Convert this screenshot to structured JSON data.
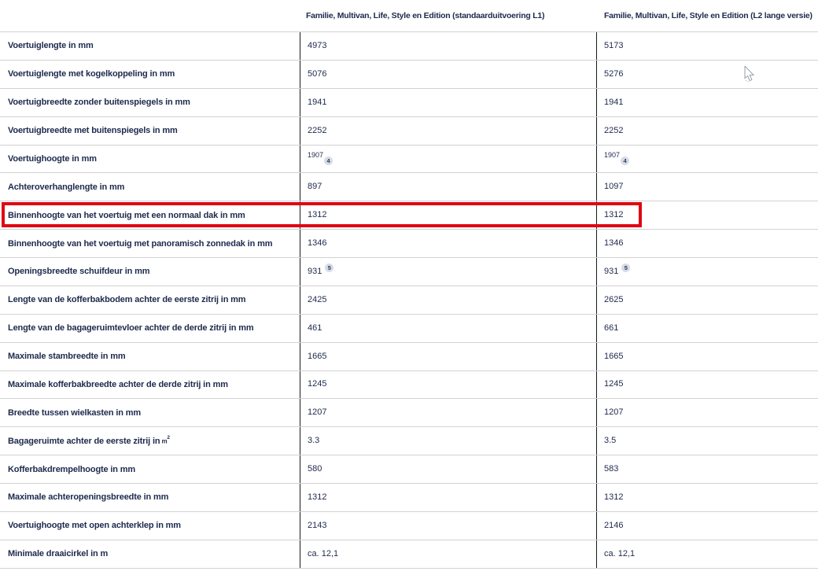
{
  "table": {
    "columns": [
      {
        "label": "Familie, Multivan, Life, Style en Edition (standaarduitvoering L1)"
      },
      {
        "label": "Familie, Multivan, Life, Style en Edition (L2 lange versie)"
      }
    ],
    "rows": [
      {
        "label": "Voertuiglengte in mm",
        "l1": "4973",
        "l2": "5173"
      },
      {
        "label": "Voertuiglengte met kogelkoppeling in mm",
        "l1": "5076",
        "l2": "5276"
      },
      {
        "label": "Voertuigbreedte zonder buitenspiegels in mm",
        "l1": "1941",
        "l2": "1941"
      },
      {
        "label": "Voertuigbreedte met buitenspiegels in mm",
        "l1": "2252",
        "l2": "2252"
      },
      {
        "label": "Voertuighoogte in mm",
        "l1": "1907",
        "l2": "1907",
        "footnote": "4",
        "value_style": "sup"
      },
      {
        "label": "Achteroverhanglengte in mm",
        "l1": "897",
        "l2": "1097"
      },
      {
        "label": "Binnenhoogte van het voertuig met een normaal dak in mm",
        "l1": "1312",
        "l2": "1312",
        "highlighted": true
      },
      {
        "label": "Binnenhoogte van het voertuig met panoramisch zonnedak in mm",
        "l1": "1346",
        "l2": "1346"
      },
      {
        "label": "Openingsbreedte schuifdeur in mm",
        "l1": "931",
        "l2": "931",
        "footnote": "5"
      },
      {
        "label": "Lengte van de kofferbakbodem achter de eerste zitrij in mm",
        "l1": "2425",
        "l2": "2625"
      },
      {
        "label": "Lengte van de bagageruimtevloer achter de derde zitrij in mm",
        "l1": "461",
        "l2": "661"
      },
      {
        "label": "Maximale stambreedte in mm",
        "l1": "1665",
        "l2": "1665"
      },
      {
        "label": "Maximale kofferbakbreedte achter de derde zitrij in mm",
        "l1": "1245",
        "l2": "1245"
      },
      {
        "label": "Breedte tussen wielkasten in mm",
        "l1": "1207",
        "l2": "1207"
      },
      {
        "label": "Bagageruimte achter de eerste zitrij in",
        "label_sup": "m",
        "label_sup2": "2",
        "l1": "3.3",
        "l2": "3.5"
      },
      {
        "label": "Kofferbakdrempelhoogte in mm",
        "l1": "580",
        "l2": "583"
      },
      {
        "label": "Maximale achteropeningsbreedte in mm",
        "l1": "1312",
        "l2": "1312"
      },
      {
        "label": "Voertuighoogte met open achterklep in mm",
        "l1": "2143",
        "l2": "2146"
      },
      {
        "label": "Minimale draaicirkel in m",
        "l1": "ca. 12,1",
        "l2": "ca. 12,1"
      }
    ]
  },
  "colors": {
    "highlight_red": "#e10613",
    "text_navy": "#1e2a4d",
    "row_separator": "#d2d2d2",
    "column_divider": "#171a21",
    "footnote_badge_bg": "#d6dce6"
  }
}
